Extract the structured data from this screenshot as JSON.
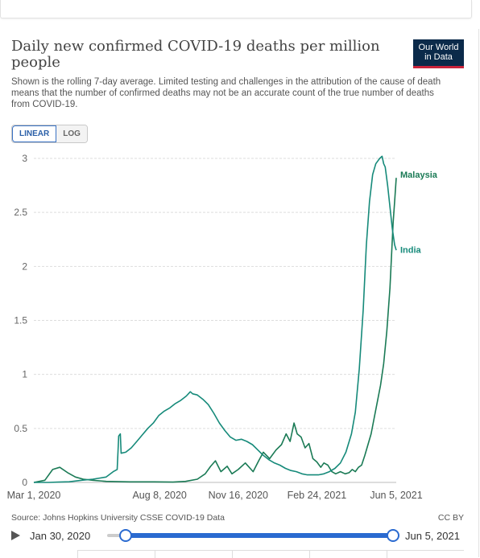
{
  "header": {
    "title": "Daily new confirmed COVID-19 deaths per million people",
    "logo_line1": "Our World",
    "logo_line2": "in Data",
    "subtitle": "Shown is the rolling 7-day average. Limited testing and challenges in the attribution of the cause of death means that the number of confirmed deaths may not be an accurate count of the true number of deaths from COVID-19."
  },
  "controls": {
    "linear_label": "LINEAR",
    "log_label": "LOG"
  },
  "footer": {
    "source": "Source: Johns Hopkins University CSSE COVID-19 Data",
    "license": "CC BY"
  },
  "timeline": {
    "start_label": "Jan 30, 2020",
    "end_label": "Jun 5, 2021"
  },
  "colors": {
    "malaysia": "#1a7a55",
    "india": "#168a7a",
    "grid": "#dddddd",
    "accent": "#2a6ad0"
  },
  "chart_data": {
    "type": "line",
    "title": "Daily new confirmed COVID-19 deaths per million people",
    "xlabel": "",
    "ylabel": "",
    "ylim": [
      0,
      3
    ],
    "yticks": [
      0,
      0.5,
      1,
      1.5,
      2,
      2.5,
      3
    ],
    "ytick_labels": [
      "0",
      "0.5",
      "1",
      "1.5",
      "2",
      "2.5",
      "3"
    ],
    "xlim": [
      "2020-03-01",
      "2021-06-05"
    ],
    "xticks": [
      "2020-03-01",
      "2020-08-08",
      "2020-11-16",
      "2021-02-24",
      "2021-06-05"
    ],
    "xtick_labels": [
      "Mar 1, 2020",
      "Aug 8, 2020",
      "Nov 16, 2020",
      "Feb 24, 2021",
      "Jun 5, 2021"
    ],
    "grid": "horizontal",
    "legend": "end-of-line labels",
    "series": [
      {
        "name": "Malaysia",
        "color": "#1a7a55",
        "points": [
          [
            "2020-03-01",
            0.0
          ],
          [
            "2020-03-15",
            0.02
          ],
          [
            "2020-03-25",
            0.12
          ],
          [
            "2020-04-03",
            0.14
          ],
          [
            "2020-04-13",
            0.09
          ],
          [
            "2020-04-23",
            0.05
          ],
          [
            "2020-05-03",
            0.03
          ],
          [
            "2020-05-15",
            0.02
          ],
          [
            "2020-06-01",
            0.01
          ],
          [
            "2020-07-01",
            0.005
          ],
          [
            "2020-08-01",
            0.005
          ],
          [
            "2020-08-25",
            0.003
          ],
          [
            "2020-09-10",
            0.01
          ],
          [
            "2020-09-25",
            0.03
          ],
          [
            "2020-10-05",
            0.08
          ],
          [
            "2020-10-12",
            0.15
          ],
          [
            "2020-10-18",
            0.2
          ],
          [
            "2020-10-25",
            0.1
          ],
          [
            "2020-11-02",
            0.15
          ],
          [
            "2020-11-08",
            0.08
          ],
          [
            "2020-11-16",
            0.12
          ],
          [
            "2020-11-25",
            0.18
          ],
          [
            "2020-12-05",
            0.1
          ],
          [
            "2020-12-12",
            0.2
          ],
          [
            "2020-12-18",
            0.28
          ],
          [
            "2020-12-26",
            0.22
          ],
          [
            "2021-01-03",
            0.3
          ],
          [
            "2021-01-10",
            0.35
          ],
          [
            "2021-01-16",
            0.45
          ],
          [
            "2021-01-21",
            0.38
          ],
          [
            "2021-01-26",
            0.55
          ],
          [
            "2021-01-30",
            0.45
          ],
          [
            "2021-02-04",
            0.42
          ],
          [
            "2021-02-09",
            0.32
          ],
          [
            "2021-02-14",
            0.36
          ],
          [
            "2021-02-19",
            0.22
          ],
          [
            "2021-02-24",
            0.19
          ],
          [
            "2021-03-01",
            0.14
          ],
          [
            "2021-03-05",
            0.18
          ],
          [
            "2021-03-10",
            0.16
          ],
          [
            "2021-03-15",
            0.1
          ],
          [
            "2021-03-20",
            0.08
          ],
          [
            "2021-03-26",
            0.1
          ],
          [
            "2021-04-01",
            0.08
          ],
          [
            "2021-04-06",
            0.09
          ],
          [
            "2021-04-10",
            0.12
          ],
          [
            "2021-04-14",
            0.1
          ],
          [
            "2021-04-18",
            0.14
          ],
          [
            "2021-04-22",
            0.16
          ],
          [
            "2021-04-26",
            0.25
          ],
          [
            "2021-04-30",
            0.35
          ],
          [
            "2021-05-04",
            0.45
          ],
          [
            "2021-05-08",
            0.6
          ],
          [
            "2021-05-12",
            0.75
          ],
          [
            "2021-05-16",
            0.9
          ],
          [
            "2021-05-20",
            1.1
          ],
          [
            "2021-05-24",
            1.4
          ],
          [
            "2021-05-28",
            1.8
          ],
          [
            "2021-06-01",
            2.4
          ],
          [
            "2021-06-03",
            2.6
          ],
          [
            "2021-06-05",
            2.82
          ]
        ]
      },
      {
        "name": "India",
        "color": "#168a7a",
        "points": [
          [
            "2020-03-01",
            0.0
          ],
          [
            "2020-03-20",
            0.0
          ],
          [
            "2020-04-01",
            0.003
          ],
          [
            "2020-04-15",
            0.006
          ],
          [
            "2020-05-01",
            0.02
          ],
          [
            "2020-05-15",
            0.03
          ],
          [
            "2020-06-01",
            0.05
          ],
          [
            "2020-06-10",
            0.1
          ],
          [
            "2020-06-15",
            0.12
          ],
          [
            "2020-06-17",
            0.43
          ],
          [
            "2020-06-19",
            0.45
          ],
          [
            "2020-06-20",
            0.27
          ],
          [
            "2020-06-26",
            0.28
          ],
          [
            "2020-07-03",
            0.32
          ],
          [
            "2020-07-10",
            0.38
          ],
          [
            "2020-07-17",
            0.44
          ],
          [
            "2020-07-24",
            0.5
          ],
          [
            "2020-07-31",
            0.55
          ],
          [
            "2020-08-07",
            0.62
          ],
          [
            "2020-08-14",
            0.66
          ],
          [
            "2020-08-21",
            0.69
          ],
          [
            "2020-08-28",
            0.73
          ],
          [
            "2020-09-04",
            0.76
          ],
          [
            "2020-09-11",
            0.8
          ],
          [
            "2020-09-16",
            0.84
          ],
          [
            "2020-09-19",
            0.82
          ],
          [
            "2020-09-25",
            0.81
          ],
          [
            "2020-10-02",
            0.77
          ],
          [
            "2020-10-09",
            0.72
          ],
          [
            "2020-10-16",
            0.64
          ],
          [
            "2020-10-23",
            0.55
          ],
          [
            "2020-10-30",
            0.48
          ],
          [
            "2020-11-06",
            0.42
          ],
          [
            "2020-11-13",
            0.39
          ],
          [
            "2020-11-20",
            0.4
          ],
          [
            "2020-11-27",
            0.38
          ],
          [
            "2020-12-04",
            0.35
          ],
          [
            "2020-12-11",
            0.3
          ],
          [
            "2020-12-18",
            0.25
          ],
          [
            "2020-12-25",
            0.21
          ],
          [
            "2021-01-01",
            0.18
          ],
          [
            "2021-01-08",
            0.16
          ],
          [
            "2021-01-15",
            0.13
          ],
          [
            "2021-01-22",
            0.11
          ],
          [
            "2021-01-29",
            0.1
          ],
          [
            "2021-02-05",
            0.08
          ],
          [
            "2021-02-12",
            0.07
          ],
          [
            "2021-02-19",
            0.07
          ],
          [
            "2021-02-26",
            0.07
          ],
          [
            "2021-03-05",
            0.08
          ],
          [
            "2021-03-12",
            0.1
          ],
          [
            "2021-03-19",
            0.13
          ],
          [
            "2021-03-26",
            0.18
          ],
          [
            "2021-04-02",
            0.28
          ],
          [
            "2021-04-09",
            0.45
          ],
          [
            "2021-04-14",
            0.65
          ],
          [
            "2021-04-19",
            1.05
          ],
          [
            "2021-04-24",
            1.6
          ],
          [
            "2021-04-28",
            2.2
          ],
          [
            "2021-05-02",
            2.6
          ],
          [
            "2021-05-06",
            2.85
          ],
          [
            "2021-05-10",
            2.95
          ],
          [
            "2021-05-13",
            2.98
          ],
          [
            "2021-05-15",
            3.0
          ],
          [
            "2021-05-18",
            3.02
          ],
          [
            "2021-05-20",
            2.95
          ],
          [
            "2021-05-22",
            2.92
          ],
          [
            "2021-05-25",
            2.75
          ],
          [
            "2021-05-28",
            2.55
          ],
          [
            "2021-05-31",
            2.35
          ],
          [
            "2021-06-03",
            2.2
          ],
          [
            "2021-06-05",
            2.15
          ]
        ]
      }
    ]
  }
}
